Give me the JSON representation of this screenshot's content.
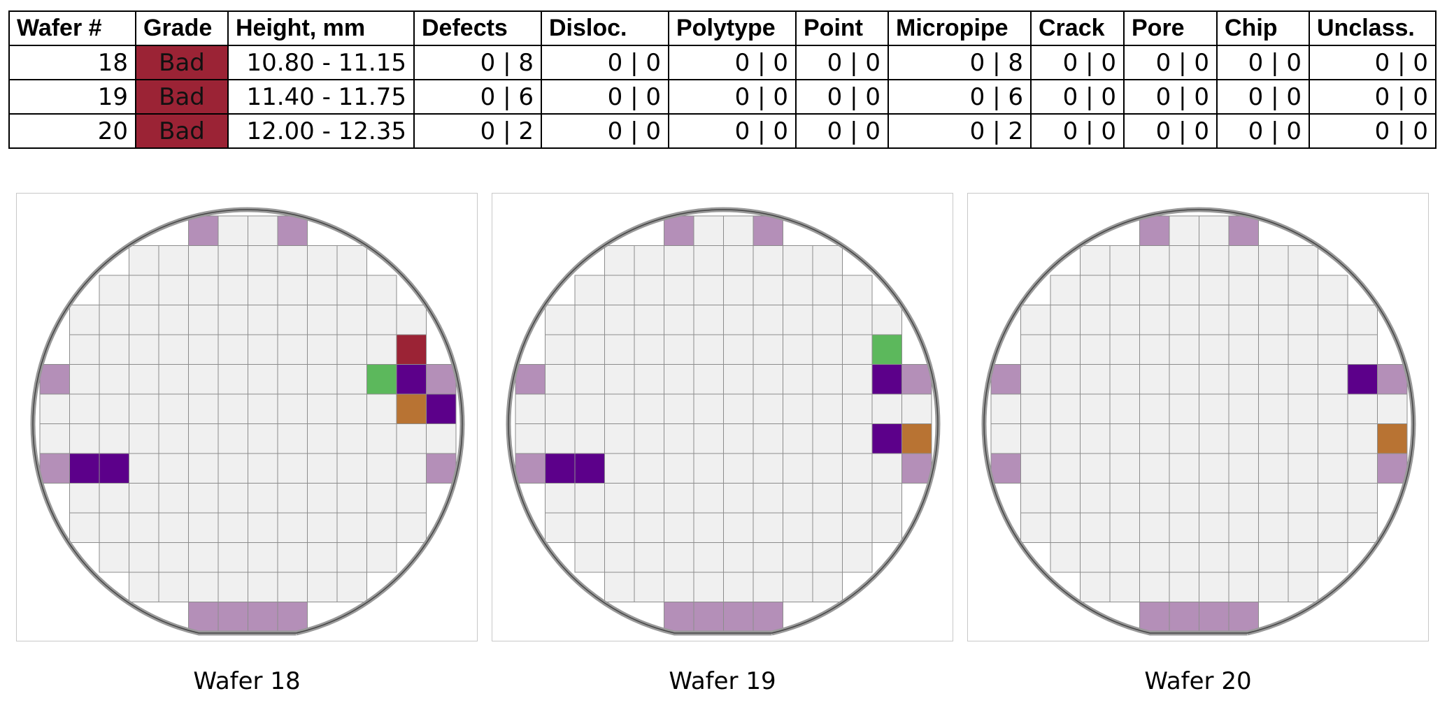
{
  "table": {
    "headers": [
      "Wafer #",
      "Grade",
      "Height, mm",
      "Defects",
      "Disloc.",
      "Polytype",
      "Point",
      "Micropipe",
      "Crack",
      "Pore",
      "Chip",
      "Unclass."
    ],
    "rows": [
      [
        "18",
        "Bad",
        "10.80 - 11.15",
        "0 | 8",
        "0 | 0",
        "0 | 0",
        "0 | 0",
        "0 | 8",
        "0 | 0",
        "0 | 0",
        "0 | 0",
        "0 | 0"
      ],
      [
        "19",
        "Bad",
        "11.40 - 11.75",
        "0 | 6",
        "0 | 0",
        "0 | 0",
        "0 | 0",
        "0 | 6",
        "0 | 0",
        "0 | 0",
        "0 | 0",
        "0 | 0"
      ],
      [
        "20",
        "Bad",
        "12.00 - 12.35",
        "0 | 2",
        "0 | 0",
        "0 | 0",
        "0 | 0",
        "0 | 2",
        "0 | 0",
        "0 | 0",
        "0 | 0",
        "0 | 0"
      ]
    ]
  },
  "colors": {
    "grade_bad": "#9b2335",
    "cell_default": "#f0f0f0",
    "cell_edge": "#b48fb8",
    "cell_border": "#8c8c8c",
    "wafer_outline": "#999999",
    "red": "#9b2335",
    "purple": "#5c008a",
    "green": "#5cb85c",
    "orange": "#b87333"
  },
  "wafers": [
    {
      "caption": "Wafer 18",
      "marked": [
        {
          "r": 4,
          "c": 12,
          "t": "red"
        },
        {
          "r": 5,
          "c": 11,
          "t": "green"
        },
        {
          "r": 5,
          "c": 12,
          "t": "purple"
        },
        {
          "r": 6,
          "c": 12,
          "t": "orange"
        },
        {
          "r": 6,
          "c": 13,
          "t": "purple"
        },
        {
          "r": 8,
          "c": 1,
          "t": "purple"
        },
        {
          "r": 8,
          "c": 2,
          "t": "purple"
        }
      ]
    },
    {
      "caption": "Wafer 19",
      "marked": [
        {
          "r": 4,
          "c": 12,
          "t": "green"
        },
        {
          "r": 5,
          "c": 12,
          "t": "purple"
        },
        {
          "r": 7,
          "c": 12,
          "t": "purple"
        },
        {
          "r": 7,
          "c": 13,
          "t": "orange"
        },
        {
          "r": 8,
          "c": 1,
          "t": "purple"
        },
        {
          "r": 8,
          "c": 2,
          "t": "purple"
        }
      ]
    },
    {
      "caption": "Wafer 20",
      "marked": [
        {
          "r": 5,
          "c": 12,
          "t": "purple"
        },
        {
          "r": 7,
          "c": 13,
          "t": "orange"
        }
      ]
    }
  ]
}
